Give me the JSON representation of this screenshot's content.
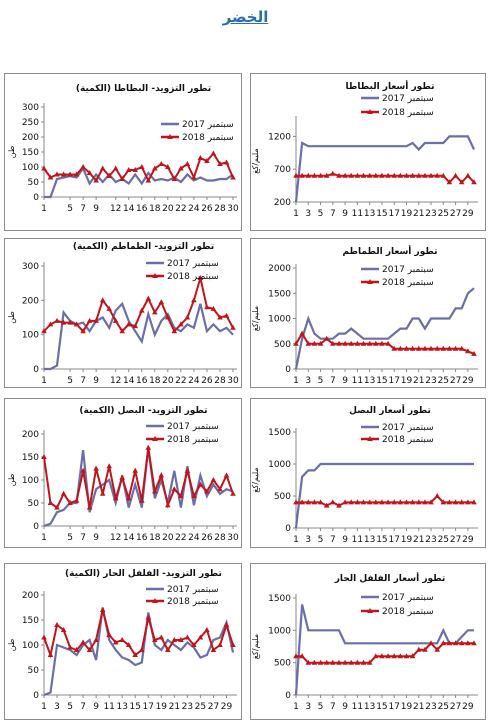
{
  "page_title": "الخضر",
  "colors": {
    "series_2017": "#6b6fa8",
    "series_2018": "#c0151b",
    "title": "#2a6fb3"
  },
  "chart_data": [
    {
      "id": "potato-supply",
      "type": "line",
      "title": "تطور التزويد- البطاطا (الكمية)",
      "ylabel": "طن",
      "xlabel": "",
      "x": [
        1,
        2,
        3,
        4,
        5,
        6,
        7,
        8,
        9,
        10,
        11,
        12,
        13,
        14,
        15,
        16,
        17,
        18,
        19,
        20,
        21,
        22,
        23,
        24,
        25,
        26,
        27,
        28,
        29,
        30
      ],
      "xticks": [
        1,
        5,
        7,
        9,
        12,
        14,
        16,
        18,
        20,
        22,
        24,
        26,
        28,
        30
      ],
      "ylim": [
        0,
        300
      ],
      "yticks": [
        0,
        50,
        100,
        150,
        200,
        250,
        300
      ],
      "grid": false,
      "legend_position": "top-right",
      "series": [
        {
          "name": "سبتمبر 2017",
          "values": [
            0,
            0,
            60,
            65,
            70,
            65,
            95,
            45,
            75,
            50,
            75,
            50,
            60,
            45,
            75,
            45,
            80,
            55,
            60,
            55,
            65,
            50,
            75,
            55,
            65,
            55,
            55,
            60,
            60,
            75
          ]
        },
        {
          "name": "سبتمبر 2018",
          "values": [
            95,
            65,
            75,
            75,
            75,
            75,
            100,
            80,
            55,
            95,
            70,
            95,
            60,
            90,
            90,
            100,
            55,
            95,
            110,
            100,
            60,
            95,
            110,
            65,
            130,
            120,
            145,
            110,
            115,
            65
          ]
        }
      ]
    },
    {
      "id": "potato-price",
      "type": "line",
      "title": "تطور أسعار البطاطا",
      "ylabel": "مليم/كغ",
      "xlabel": "",
      "x": [
        1,
        2,
        3,
        4,
        5,
        6,
        7,
        8,
        9,
        10,
        11,
        12,
        13,
        14,
        15,
        16,
        17,
        18,
        19,
        20,
        21,
        22,
        23,
        24,
        25,
        26,
        27,
        28,
        29,
        30
      ],
      "xticks": [
        1,
        3,
        5,
        7,
        9,
        11,
        13,
        15,
        17,
        19,
        21,
        23,
        25,
        27,
        29
      ],
      "ylim": [
        200,
        1450
      ],
      "yticks": [
        200,
        700,
        1200
      ],
      "grid": false,
      "legend_position": "top-right",
      "series": [
        {
          "name": "سبتمبر 2017",
          "values": [
            200,
            1100,
            1050,
            1050,
            1050,
            1050,
            1050,
            1050,
            1050,
            1050,
            1050,
            1050,
            1050,
            1050,
            1050,
            1050,
            1050,
            1050,
            1050,
            1100,
            1000,
            1100,
            1100,
            1100,
            1100,
            1200,
            1200,
            1200,
            1200,
            1000
          ]
        },
        {
          "name": "سبتمبر 2018",
          "values": [
            600,
            600,
            600,
            600,
            600,
            600,
            630,
            600,
            600,
            600,
            600,
            600,
            600,
            600,
            600,
            600,
            600,
            600,
            600,
            600,
            600,
            600,
            600,
            600,
            600,
            500,
            600,
            500,
            600,
            500
          ]
        }
      ]
    },
    {
      "id": "tomato-supply",
      "type": "line",
      "title": "تطور التزويد- الطماطم (الكمية)",
      "ylabel": "طن",
      "xlabel": "",
      "x": [
        1,
        2,
        3,
        4,
        5,
        6,
        7,
        8,
        9,
        10,
        11,
        12,
        13,
        14,
        15,
        16,
        17,
        18,
        19,
        20,
        21,
        22,
        23,
        24,
        25,
        26,
        27,
        28,
        29,
        30
      ],
      "xticks": [
        1,
        5,
        7,
        9,
        12,
        14,
        16,
        18,
        20,
        22,
        24,
        26,
        28,
        30
      ],
      "ylim": [
        0,
        300
      ],
      "yticks": [
        0,
        100,
        200,
        300
      ],
      "grid": false,
      "legend_position": "top",
      "series": [
        {
          "name": "سبتمبر 2017",
          "values": [
            0,
            0,
            10,
            165,
            140,
            130,
            135,
            110,
            140,
            150,
            120,
            170,
            190,
            140,
            110,
            80,
            160,
            100,
            140,
            160,
            120,
            110,
            130,
            120,
            190,
            110,
            130,
            110,
            120,
            100
          ]
        },
        {
          "name": "سبتمبر 2018",
          "values": [
            110,
            130,
            140,
            135,
            135,
            130,
            110,
            140,
            140,
            200,
            175,
            140,
            110,
            130,
            125,
            170,
            205,
            165,
            195,
            150,
            110,
            130,
            150,
            200,
            265,
            180,
            175,
            150,
            155,
            120
          ]
        }
      ]
    },
    {
      "id": "tomato-price",
      "type": "line",
      "title": "تطور أسعار الطماطم",
      "ylabel": "مليم/كغ",
      "xlabel": "",
      "x": [
        1,
        2,
        3,
        4,
        5,
        6,
        7,
        8,
        9,
        10,
        11,
        12,
        13,
        14,
        15,
        16,
        17,
        18,
        19,
        20,
        21,
        22,
        23,
        24,
        25,
        26,
        27,
        28,
        29,
        30
      ],
      "xticks": [
        1,
        3,
        5,
        7,
        9,
        11,
        13,
        15,
        17,
        19,
        21,
        23,
        25,
        27,
        29
      ],
      "ylim": [
        0,
        2000
      ],
      "yticks": [
        0,
        500,
        1000,
        1500,
        2000
      ],
      "grid": false,
      "legend_position": "top-right",
      "series": [
        {
          "name": "سبتمبر 2017",
          "values": [
            0,
            600,
            1000,
            700,
            600,
            600,
            600,
            700,
            700,
            800,
            700,
            600,
            600,
            600,
            600,
            600,
            700,
            800,
            800,
            1000,
            1000,
            800,
            1000,
            1000,
            1000,
            1000,
            1200,
            1200,
            1500,
            1600
          ]
        },
        {
          "name": "سبتمبر 2018",
          "values": [
            500,
            700,
            500,
            500,
            500,
            600,
            500,
            500,
            500,
            500,
            500,
            500,
            500,
            500,
            500,
            500,
            400,
            400,
            400,
            400,
            400,
            400,
            400,
            400,
            400,
            400,
            400,
            400,
            350,
            300
          ]
        }
      ]
    },
    {
      "id": "onion-supply",
      "type": "line",
      "title": "تطور التزويد- البصل (الكمية)",
      "ylabel": "طن",
      "xlabel": "",
      "x": [
        1,
        2,
        3,
        4,
        5,
        6,
        7,
        8,
        9,
        10,
        11,
        12,
        13,
        14,
        15,
        16,
        17,
        18,
        19,
        20,
        21,
        22,
        23,
        24,
        25,
        26,
        27,
        28,
        29,
        30
      ],
      "xticks": [
        1,
        5,
        7,
        9,
        12,
        14,
        16,
        18,
        20,
        22,
        24,
        26,
        28,
        30
      ],
      "ylim": [
        0,
        200
      ],
      "yticks": [
        0,
        50,
        100,
        150,
        200
      ],
      "grid": false,
      "legend_position": "top",
      "series": [
        {
          "name": "سبتمبر 2017",
          "values": [
            0,
            5,
            30,
            35,
            50,
            50,
            165,
            30,
            80,
            90,
            100,
            50,
            110,
            40,
            90,
            40,
            170,
            60,
            100,
            50,
            120,
            40,
            130,
            45,
            110,
            65,
            90,
            70,
            80,
            75
          ]
        },
        {
          "name": "سبتمبر 2018",
          "values": [
            150,
            50,
            40,
            70,
            50,
            55,
            120,
            40,
            125,
            70,
            130,
            60,
            105,
            60,
            120,
            55,
            170,
            75,
            110,
            45,
            80,
            65,
            120,
            65,
            90,
            75,
            100,
            80,
            110,
            70
          ]
        }
      ]
    },
    {
      "id": "onion-price",
      "type": "line",
      "title": "تطور أسعار البصل",
      "ylabel": "مليم/كغ",
      "xlabel": "",
      "x": [
        1,
        2,
        3,
        4,
        5,
        6,
        7,
        8,
        9,
        10,
        11,
        12,
        13,
        14,
        15,
        16,
        17,
        18,
        19,
        20,
        21,
        22,
        23,
        24,
        25,
        26,
        27,
        28,
        29,
        30
      ],
      "xticks": [
        1,
        3,
        5,
        7,
        9,
        11,
        13,
        15,
        17,
        19,
        21,
        23,
        25,
        27,
        29
      ],
      "ylim": [
        0,
        1500
      ],
      "yticks": [
        0,
        500,
        1000,
        1500
      ],
      "grid": false,
      "legend_position": "top-right",
      "series": [
        {
          "name": "سبتمبر 2017",
          "values": [
            0,
            800,
            900,
            900,
            1000,
            1000,
            1000,
            1000,
            1000,
            1000,
            1000,
            1000,
            1000,
            1000,
            1000,
            1000,
            1000,
            1000,
            1000,
            1000,
            1000,
            1000,
            1000,
            1000,
            1000,
            1000,
            1000,
            1000,
            1000,
            1000
          ]
        },
        {
          "name": "سبتمبر 2018",
          "values": [
            400,
            400,
            400,
            400,
            400,
            350,
            400,
            350,
            400,
            400,
            400,
            400,
            400,
            400,
            400,
            400,
            400,
            400,
            400,
            400,
            400,
            400,
            400,
            500,
            400,
            400,
            400,
            400,
            400,
            400
          ]
        }
      ]
    },
    {
      "id": "pepper-supply",
      "type": "line",
      "title": "تطور التزويد- الفلفل الحار (الكمية)",
      "ylabel": "طن",
      "xlabel": "",
      "x": [
        1,
        2,
        3,
        4,
        5,
        6,
        7,
        8,
        9,
        10,
        11,
        12,
        13,
        14,
        15,
        16,
        17,
        18,
        19,
        20,
        21,
        22,
        23,
        24,
        25,
        26,
        27,
        28,
        29,
        30
      ],
      "xticks": [
        1,
        3,
        5,
        7,
        9,
        11,
        13,
        15,
        17,
        19,
        21,
        23,
        25,
        27,
        29
      ],
      "ylim": [
        0,
        200
      ],
      "yticks": [
        0,
        50,
        100,
        150,
        200
      ],
      "grid": false,
      "legend_position": "top",
      "series": [
        {
          "name": "سبتمبر 2017",
          "values": [
            0,
            5,
            100,
            95,
            90,
            80,
            100,
            110,
            70,
            175,
            110,
            90,
            75,
            70,
            60,
            65,
            165,
            100,
            90,
            110,
            100,
            90,
            105,
            95,
            75,
            80,
            110,
            115,
            145,
            85
          ]
        },
        {
          "name": "سبتمبر 2018",
          "values": [
            115,
            80,
            140,
            130,
            95,
            90,
            105,
            90,
            110,
            170,
            120,
            105,
            110,
            100,
            80,
            90,
            155,
            110,
            115,
            90,
            110,
            110,
            115,
            100,
            115,
            130,
            90,
            100,
            140,
            100
          ]
        }
      ]
    },
    {
      "id": "pepper-price",
      "type": "line",
      "title": "تطور أسعار الفلفل الحار",
      "ylabel": "مليم/كغ",
      "xlabel": "",
      "x": [
        1,
        2,
        3,
        4,
        5,
        6,
        7,
        8,
        9,
        10,
        11,
        12,
        13,
        14,
        15,
        16,
        17,
        18,
        19,
        20,
        21,
        22,
        23,
        24,
        25,
        26,
        27,
        28,
        29,
        30
      ],
      "xticks": [
        1,
        3,
        5,
        7,
        9,
        11,
        13,
        15,
        17,
        19,
        21,
        23,
        25,
        27,
        29
      ],
      "ylim": [
        0,
        1500
      ],
      "yticks": [
        0,
        500,
        1000,
        1500
      ],
      "grid": false,
      "legend_position": "top-right",
      "series": [
        {
          "name": "سبتمبر 2017",
          "values": [
            0,
            1400,
            1000,
            1000,
            1000,
            1000,
            1000,
            1000,
            800,
            800,
            800,
            800,
            800,
            800,
            800,
            800,
            800,
            800,
            800,
            800,
            800,
            800,
            800,
            800,
            1000,
            800,
            800,
            900,
            1000,
            1000
          ]
        },
        {
          "name": "سبتمبر 2018",
          "values": [
            600,
            600,
            500,
            500,
            500,
            500,
            500,
            500,
            500,
            500,
            500,
            500,
            500,
            600,
            600,
            600,
            600,
            600,
            600,
            600,
            700,
            700,
            800,
            700,
            800,
            800,
            800,
            800,
            800,
            800
          ]
        }
      ]
    }
  ]
}
